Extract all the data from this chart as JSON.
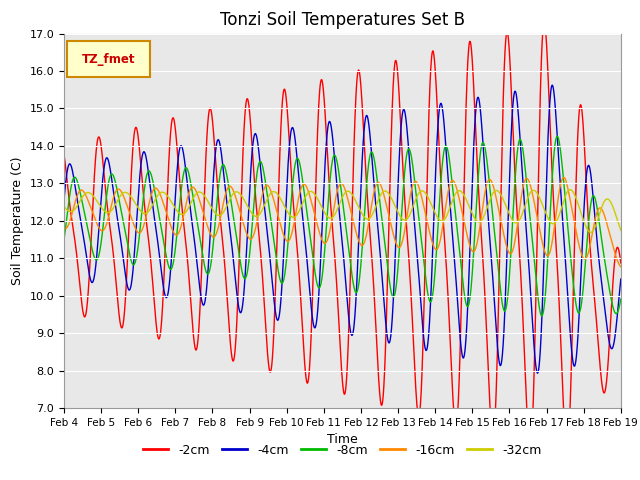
{
  "title": "Tonzi Soil Temperatures Set B",
  "xlabel": "Time",
  "ylabel": "Soil Temperature (C)",
  "ylim": [
    7.0,
    17.0
  ],
  "yticks": [
    7.0,
    8.0,
    9.0,
    10.0,
    11.0,
    12.0,
    13.0,
    14.0,
    15.0,
    16.0,
    17.0
  ],
  "xtick_labels": [
    "Feb 4",
    "Feb 5",
    "Feb 6",
    "Feb 7",
    "Feb 8",
    "Feb 9",
    "Feb 10",
    "Feb 11",
    "Feb 12",
    "Feb 13",
    "Feb 14",
    "Feb 15",
    "Feb 16",
    "Feb 17",
    "Feb 18",
    "Feb 19"
  ],
  "series_colors": [
    "#ff0000",
    "#0000cc",
    "#00bb00",
    "#ff8800",
    "#cccc00"
  ],
  "series_labels": [
    "-2cm",
    "-4cm",
    "-8cm",
    "-16cm",
    "-32cm"
  ],
  "legend_label": "TZ_fmet",
  "legend_box_color": "#ffffcc",
  "legend_box_edgecolor": "#cc8800",
  "legend_text_color": "#cc0000",
  "bg_color": "#e8e8e8",
  "grid_color": "#ffffff",
  "title_fontsize": 12,
  "axis_fontsize": 9,
  "tick_fontsize": 8
}
